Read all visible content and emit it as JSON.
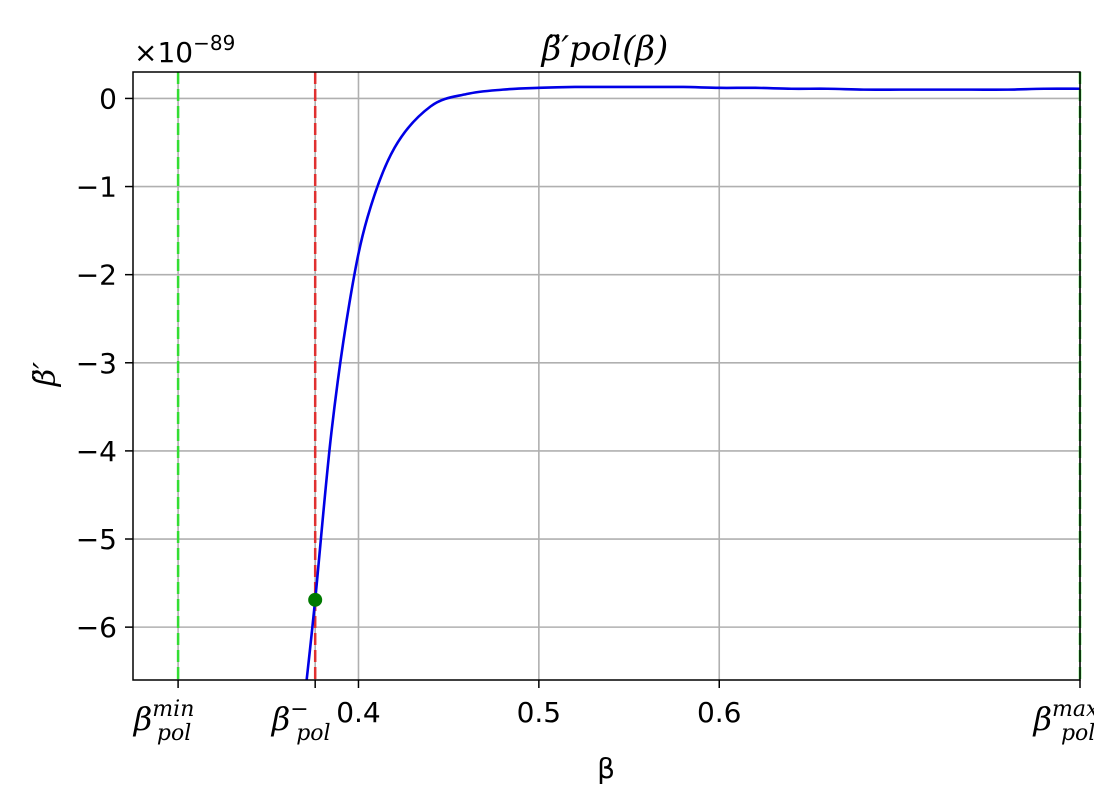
{
  "chart_data": {
    "type": "line",
    "title": "β̈′pol(β)",
    "xlabel": "β",
    "ylabel": "β̈′",
    "offset_text": "×10−89",
    "offset_base": "×10",
    "offset_exp": "−89",
    "xlim": [
      0.275,
      0.8
    ],
    "ylim": [
      -6.6,
      0.3
    ],
    "grid": true,
    "x_ticks": [
      {
        "value": 0.3,
        "label": "",
        "math_base": "β",
        "math_sub": "pol",
        "math_sup": "min"
      },
      {
        "value": 0.376,
        "label": "",
        "math_base": "β",
        "math_sub": "pol",
        "math_sup": "−"
      },
      {
        "value": 0.4,
        "label": "0.4"
      },
      {
        "value": 0.5,
        "label": "0.5"
      },
      {
        "value": 0.6,
        "label": "0.6"
      },
      {
        "value": 0.8,
        "label": "",
        "math_base": "β",
        "math_sub": "pol",
        "math_sup": "max"
      }
    ],
    "y_ticks": [
      {
        "value": 0,
        "label": "0"
      },
      {
        "value": -1,
        "label": "−1"
      },
      {
        "value": -2,
        "label": "−2"
      },
      {
        "value": -3,
        "label": "−3"
      },
      {
        "value": -4,
        "label": "−4"
      },
      {
        "value": -5,
        "label": "−5"
      },
      {
        "value": -6,
        "label": "−6"
      }
    ],
    "vlines": [
      {
        "x": 0.3,
        "color": "#33dd33",
        "style": "dashed"
      },
      {
        "x": 0.376,
        "color": "#e03030",
        "style": "dashed"
      },
      {
        "x": 0.8,
        "color": "#33dd33",
        "style": "dashed"
      }
    ],
    "series": [
      {
        "color": "#0000e6",
        "x": [
          0.371,
          0.376,
          0.385,
          0.395,
          0.405,
          0.42,
          0.44,
          0.46,
          0.48,
          0.5,
          0.52,
          0.54,
          0.56,
          0.58,
          0.6,
          0.62,
          0.64,
          0.66,
          0.68,
          0.7,
          0.72,
          0.74,
          0.76,
          0.78,
          0.8
        ],
        "y": [
          -6.65,
          -5.69,
          -3.79,
          -2.32,
          -1.35,
          -0.56,
          -0.09,
          0.05,
          0.1,
          0.12,
          0.13,
          0.13,
          0.13,
          0.13,
          0.12,
          0.12,
          0.11,
          0.11,
          0.1,
          0.1,
          0.1,
          0.1,
          0.1,
          0.11,
          0.11
        ]
      }
    ],
    "points": [
      {
        "x": 0.376,
        "y": -5.69,
        "color": "#007a00"
      }
    ]
  }
}
